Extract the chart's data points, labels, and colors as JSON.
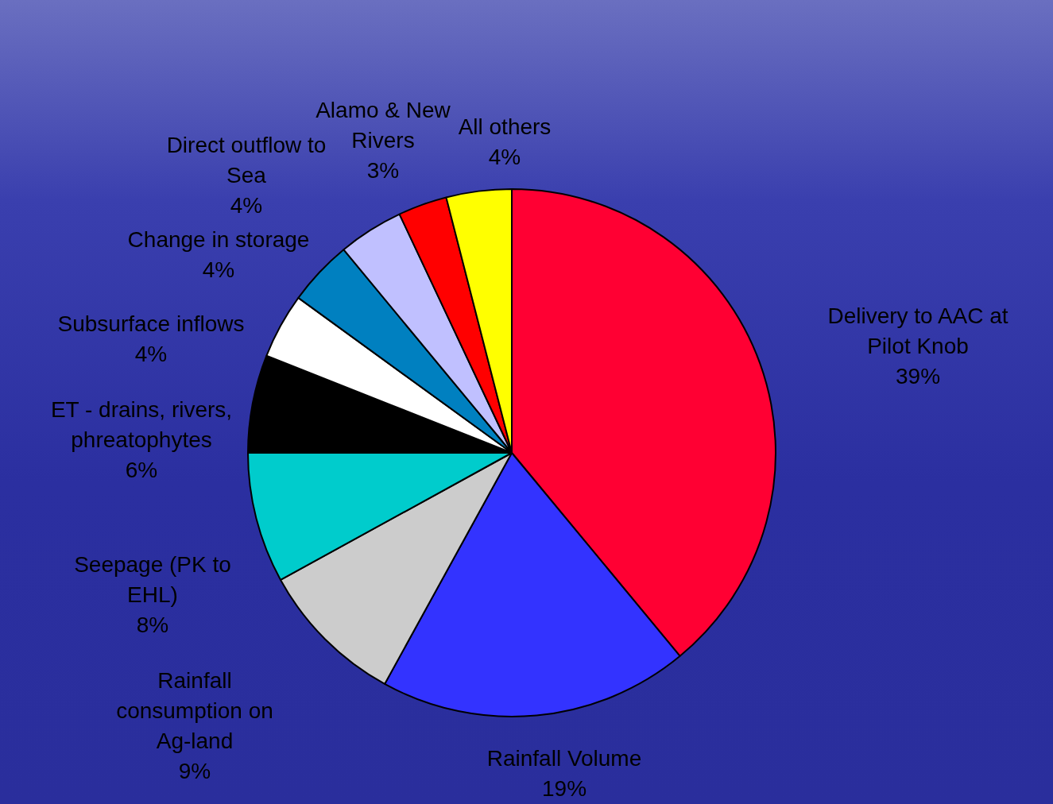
{
  "chart_data": {
    "type": "pie",
    "categories": [
      "Delivery to AAC at Pilot Knob",
      "Rainfall Volume",
      "Rainfall consumption on Ag-land",
      "Seepage (PK to EHL)",
      "ET - drains, rivers, phreatophytes",
      "Subsurface inflows",
      "Change in storage",
      "Direct outflow to Sea",
      "Alamo & New Rivers",
      "All others"
    ],
    "values": [
      39,
      19,
      9,
      8,
      6,
      4,
      4,
      4,
      3,
      4
    ],
    "colors": [
      "#ff0033",
      "#3333ff",
      "#cccccc",
      "#00cccc",
      "#000000",
      "#ffffff",
      "#0080c0",
      "#c0c0ff",
      "#ff0000",
      "#ffff00"
    ],
    "value_labels": [
      "39%",
      "19%",
      "9%",
      "8%",
      "6%",
      "4%",
      "4%",
      "4%",
      "3%",
      "4%"
    ],
    "legend": false
  }
}
